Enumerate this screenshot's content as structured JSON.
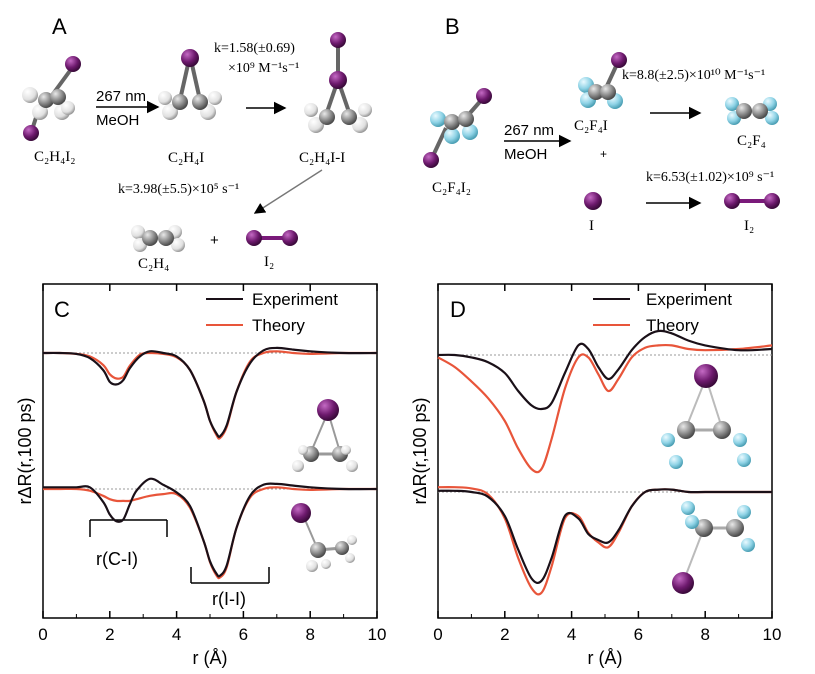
{
  "panel_A": {
    "letter": "A",
    "reactant": "C₂H₄I₂",
    "condition_wavelength": "267 nm",
    "condition_solvent": "MeOH",
    "intermediate": "C₂H₄I",
    "rate1_line1": "k=1.58(±0.69)",
    "rate1_line2": "×10⁹ M⁻¹s⁻¹",
    "complex": "C₂H₄I-I",
    "rate2": "k=3.98(±5.5)×10⁵ s⁻¹",
    "product1": "C₂H₄",
    "plus": "+",
    "product2": "I₂"
  },
  "panel_B": {
    "letter": "B",
    "reactant": "C₂F₄I₂",
    "condition_wavelength": "267 nm",
    "condition_solvent": "MeOH",
    "radical": "C₂F₄I",
    "plus": "+",
    "atom": "I",
    "rate1": "k=8.8(±2.5)×10¹⁰ M⁻¹s⁻¹",
    "product1": "C₂F₄",
    "rate2": "k=6.53(±1.02)×10⁹ s⁻¹",
    "product2": "I₂"
  },
  "colors": {
    "experiment": "#1a1018",
    "theory": "#e8553a",
    "iodine": "#6e1a6e",
    "carbon": "#8a8a8a",
    "hydrogen": "#e6e6e6",
    "fluorine": "#8fd3e6",
    "baseline": "#999999"
  },
  "chart_data": [
    {
      "type": "line",
      "panel": "C",
      "xlabel": "r (Å)",
      "ylabel": "rΔR(r,100 ps)",
      "xlim": [
        0,
        10
      ],
      "xticks": [
        0,
        2,
        4,
        6,
        8,
        10
      ],
      "legend": [
        "Experiment",
        "Theory"
      ],
      "annotations": [
        "r(C-I)",
        "r(I-I)"
      ],
      "upper": {
        "x": [
          0,
          0.5,
          1.0,
          1.4,
          1.8,
          2.0,
          2.2,
          2.4,
          2.6,
          2.9,
          3.2,
          3.6,
          4.0,
          4.4,
          4.8,
          5.0,
          5.2,
          5.3,
          5.5,
          5.8,
          6.2,
          6.6,
          7.0,
          7.5,
          8.0,
          9.0,
          10.0
        ],
        "experiment": [
          0,
          0,
          -0.01,
          -0.06,
          -0.2,
          -0.34,
          -0.37,
          -0.32,
          -0.18,
          -0.04,
          0.02,
          0,
          -0.04,
          -0.2,
          -0.55,
          -0.8,
          -0.95,
          -0.98,
          -0.85,
          -0.45,
          -0.12,
          0.03,
          0.06,
          0.04,
          0.02,
          0.0,
          0.0
        ],
        "theory": [
          0,
          0,
          -0.01,
          -0.04,
          -0.14,
          -0.25,
          -0.3,
          -0.28,
          -0.15,
          -0.02,
          0.0,
          -0.01,
          -0.05,
          -0.2,
          -0.55,
          -0.8,
          -0.97,
          -1.0,
          -0.87,
          -0.45,
          -0.1,
          0.0,
          0.02,
          0.0,
          -0.01,
          0.0,
          0.0
        ]
      },
      "lower": {
        "x": [
          0,
          0.5,
          1.0,
          1.4,
          1.8,
          2.0,
          2.2,
          2.4,
          2.6,
          2.8,
          3.2,
          3.6,
          4.0,
          4.4,
          4.8,
          5.0,
          5.2,
          5.3,
          5.5,
          5.8,
          6.2,
          6.6,
          7.0,
          7.5,
          8.0,
          9.0,
          10.0
        ],
        "experiment": [
          0.02,
          0.02,
          0.02,
          0.02,
          -0.15,
          -0.3,
          -0.38,
          -0.36,
          -0.18,
          -0.02,
          0.12,
          0.05,
          -0.04,
          -0.2,
          -0.6,
          -0.85,
          -1.0,
          -1.02,
          -0.9,
          -0.45,
          -0.08,
          0.05,
          0.06,
          0.04,
          0.02,
          0.0,
          0.0
        ],
        "theory": [
          0.0,
          0.0,
          0.0,
          -0.02,
          -0.08,
          -0.12,
          -0.14,
          -0.14,
          -0.14,
          -0.12,
          -0.08,
          -0.06,
          -0.06,
          -0.22,
          -0.6,
          -0.86,
          -1.02,
          -1.04,
          -0.92,
          -0.45,
          -0.1,
          0.0,
          0.02,
          0.0,
          -0.01,
          0.0,
          0.0
        ]
      }
    },
    {
      "type": "line",
      "panel": "D",
      "xlabel": "r (Å)",
      "ylabel": "rΔR(r,100 ps)",
      "xlim": [
        0,
        10
      ],
      "xticks": [
        0,
        2,
        4,
        6,
        8,
        10
      ],
      "legend": [
        "Experiment",
        "Theory"
      ],
      "upper": {
        "x": [
          0,
          0.5,
          1.0,
          1.5,
          2.0,
          2.4,
          2.8,
          3.1,
          3.4,
          3.8,
          4.2,
          4.5,
          4.8,
          5.1,
          5.4,
          5.8,
          6.2,
          6.6,
          7.0,
          7.5,
          8.0,
          9.0,
          10.0
        ],
        "experiment": [
          0,
          0,
          -0.02,
          -0.06,
          -0.15,
          -0.3,
          -0.42,
          -0.45,
          -0.4,
          -0.15,
          0.08,
          0.05,
          -0.1,
          -0.2,
          -0.12,
          0.04,
          0.15,
          0.2,
          0.18,
          0.12,
          0.08,
          0.04,
          0.05
        ],
        "theory": [
          -0.02,
          -0.1,
          -0.22,
          -0.36,
          -0.55,
          -0.78,
          -0.95,
          -0.95,
          -0.7,
          -0.28,
          -0.02,
          -0.02,
          -0.16,
          -0.3,
          -0.2,
          -0.02,
          0.06,
          0.08,
          0.08,
          0.05,
          0.04,
          0.05,
          0.08
        ]
      },
      "lower": {
        "x": [
          0,
          0.5,
          1.0,
          1.5,
          2.0,
          2.4,
          2.8,
          3.1,
          3.4,
          3.8,
          4.2,
          4.5,
          4.8,
          5.1,
          5.4,
          5.8,
          6.2,
          6.6,
          7.0,
          7.5,
          8.0,
          9.0,
          10.0
        ],
        "experiment": [
          0.01,
          0.01,
          0.0,
          -0.04,
          -0.2,
          -0.48,
          -0.72,
          -0.74,
          -0.55,
          -0.2,
          -0.22,
          -0.35,
          -0.4,
          -0.42,
          -0.32,
          -0.12,
          0.0,
          0.02,
          0.02,
          0.0,
          0.0,
          0.0,
          0.0
        ],
        "theory": [
          0.04,
          0.04,
          0.03,
          -0.02,
          -0.22,
          -0.55,
          -0.8,
          -0.84,
          -0.62,
          -0.22,
          -0.2,
          -0.34,
          -0.42,
          -0.46,
          -0.34,
          -0.12,
          0.0,
          0.02,
          0.02,
          0.0,
          0.0,
          0.0,
          0.0
        ]
      }
    }
  ]
}
